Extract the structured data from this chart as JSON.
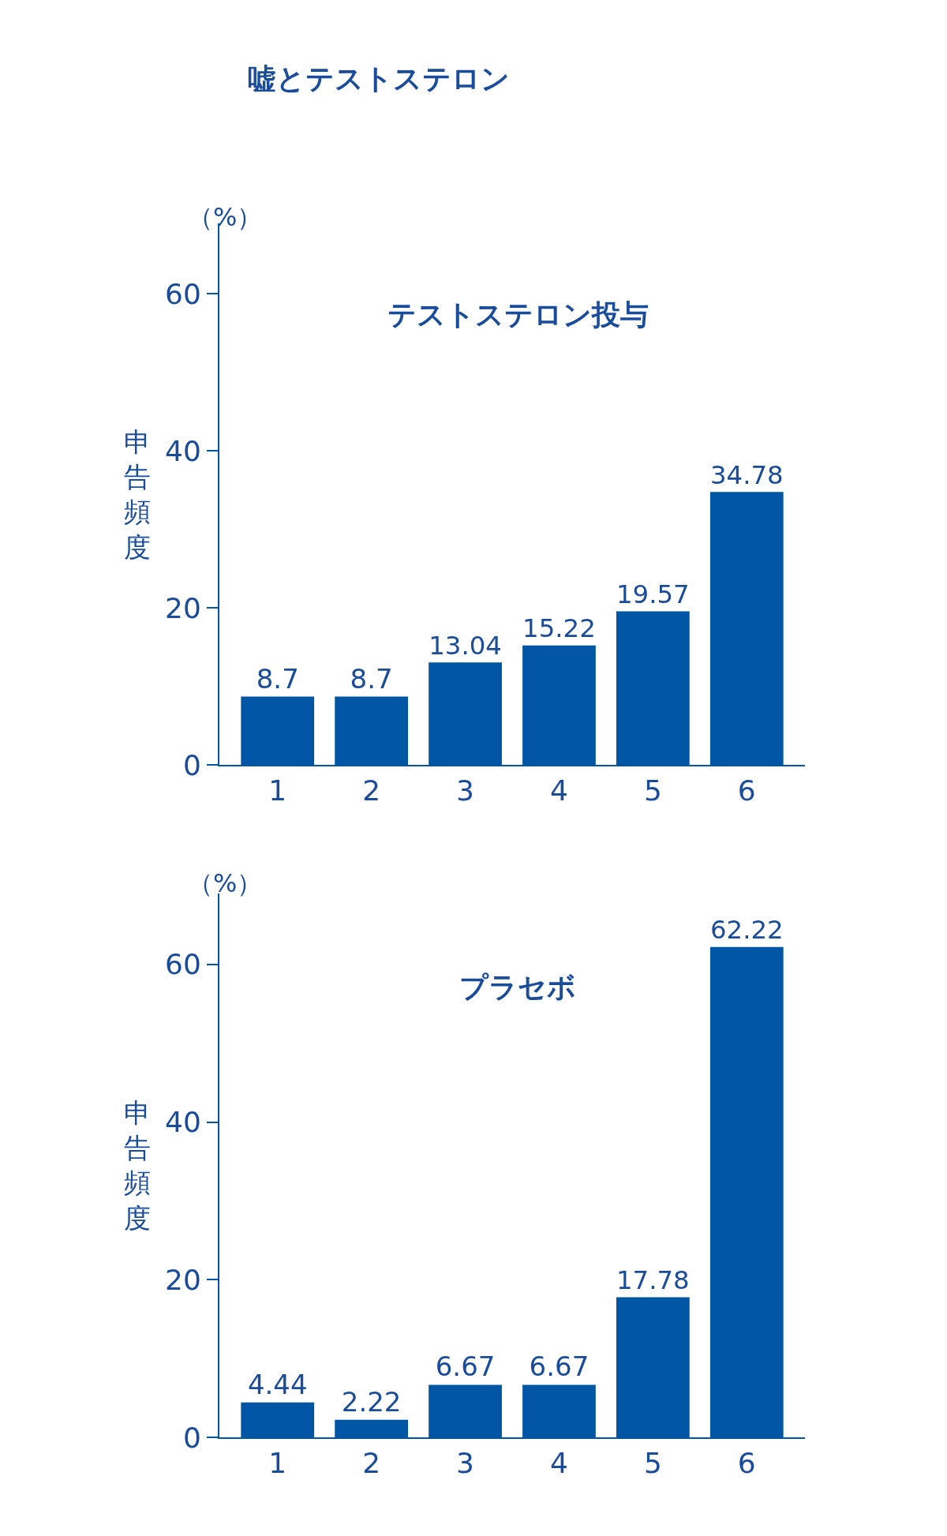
{
  "chart_data": [
    {
      "type": "bar",
      "title": "嘘とテストステロン",
      "subtitle": "テストステロン投与",
      "ylabel": "申告頻度",
      "annotations": [
        "（%）"
      ],
      "categories": [
        "1",
        "2",
        "3",
        "4",
        "5",
        "6"
      ],
      "values": [
        8.7,
        8.7,
        13.04,
        15.22,
        19.57,
        34.78
      ],
      "color": "#0055a5",
      "ylim": [
        0,
        69
      ],
      "yticks": [
        0,
        20,
        40,
        60
      ],
      "data_labels": true
    },
    {
      "type": "bar",
      "title": "プラセボ",
      "ylabel": "申告頻度",
      "annotations": [
        "（%）"
      ],
      "categories": [
        "1",
        "2",
        "3",
        "4",
        "5",
        "6"
      ],
      "values": [
        4.44,
        2.22,
        6.67,
        6.67,
        17.78,
        62.22
      ],
      "color": "#0055a5",
      "ylim": [
        0,
        69
      ],
      "yticks": [
        0,
        20,
        40,
        60
      ],
      "data_labels": true
    }
  ]
}
